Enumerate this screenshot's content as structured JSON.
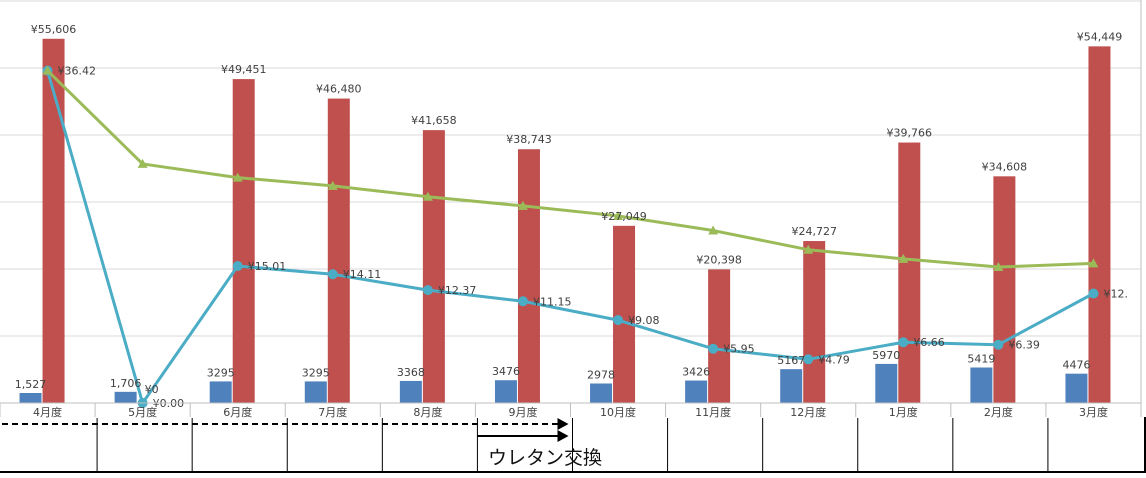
{
  "chart_data": {
    "type": "bar",
    "categories": [
      "4月度",
      "5月度",
      "6月度",
      "7月度",
      "8月度",
      "9月度",
      "10月度",
      "11月度",
      "12月度",
      "1月度",
      "2月度",
      "3月度"
    ],
    "series": [
      {
        "type": "bar",
        "color": "#4f81bd",
        "values": [
          1527,
          1706,
          3295,
          3295,
          3368,
          3476,
          2978,
          3426,
          5167,
          5970,
          5419,
          4476
        ],
        "labels": [
          "1,527",
          "1,706",
          "3295",
          "3295",
          "3368",
          "3476",
          "2978",
          "3426",
          "5167",
          "5970",
          "5419",
          "4476"
        ]
      },
      {
        "type": "bar",
        "color": "#c0504d",
        "values": [
          55606,
          0,
          49451,
          46480,
          41658,
          38743,
          27049,
          20398,
          24727,
          39766,
          34608,
          54449
        ],
        "labels": [
          "¥55,606",
          "",
          "¥49,451",
          "¥46,480",
          "¥41,658",
          "¥38,743",
          "¥27,049",
          "¥20,398",
          "¥24,727",
          "¥39,766",
          "¥34,608",
          "¥54,449"
        ]
      },
      {
        "type": "line",
        "marker": "circle",
        "color": "#4bacc6",
        "values": [
          36.42,
          0.0,
          15.01,
          14.11,
          12.37,
          11.15,
          9.08,
          5.95,
          4.79,
          6.66,
          6.39,
          12.0
        ],
        "labels": [
          "¥36.42",
          "¥0.00",
          "¥15.01",
          "¥14.11",
          "¥12.37",
          "¥11.15",
          "¥9.08",
          "¥5.95",
          "¥4.79",
          "¥6.66",
          "¥6.39",
          "¥12."
        ]
      },
      {
        "type": "line",
        "marker": "triangle",
        "color": "#9bbb59",
        "values": [
          36.42,
          26.2,
          24.7,
          23.8,
          22.6,
          21.6,
          20.5,
          18.9,
          16.8,
          15.8,
          14.9,
          15.3
        ],
        "labels": []
      }
    ],
    "extra_labels": [
      "¥0"
    ],
    "ylim_bars": [
      0,
      60000
    ],
    "ylim_lines": [
      0,
      40
    ],
    "grid": true,
    "annotation": {
      "text": "ウレタン交換"
    }
  }
}
